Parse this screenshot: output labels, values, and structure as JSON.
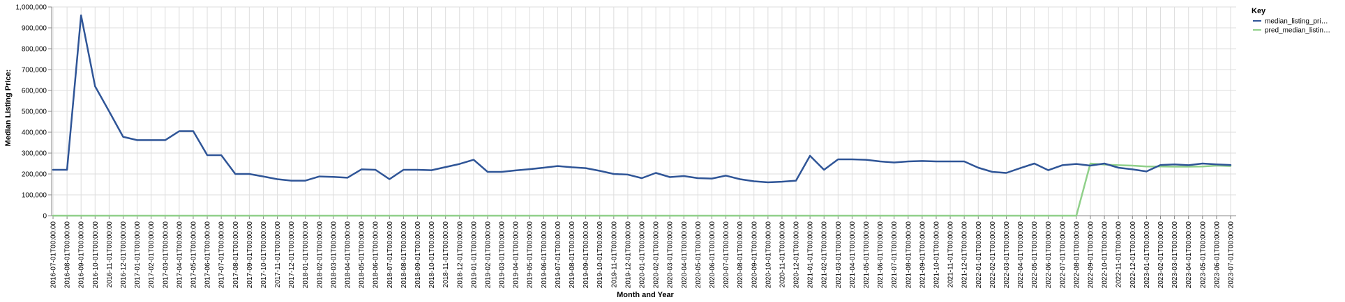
{
  "chart_data": {
    "type": "line",
    "xlabel": "Month and Year",
    "ylabel": "Median Listing Price:",
    "ylim": [
      0,
      1000000
    ],
    "yticks": [
      "0",
      "100,000",
      "200,000",
      "300,000",
      "400,000",
      "500,000",
      "600,000",
      "700,000",
      "800,000",
      "900,000",
      "1,000,000"
    ],
    "grid": true,
    "legend": {
      "title": "Key",
      "placement": "top-right"
    },
    "x": [
      "2016-07-01T00:00:00",
      "2016-08-01T00:00:00",
      "2016-09-01T00:00:00",
      "2016-10-01T00:00:00",
      "2016-11-01T00:00:00",
      "2016-12-01T00:00:00",
      "2017-01-01T00:00:00",
      "2017-02-01T00:00:00",
      "2017-03-01T00:00:00",
      "2017-04-01T00:00:00",
      "2017-05-01T00:00:00",
      "2017-06-01T00:00:00",
      "2017-07-01T00:00:00",
      "2017-08-01T00:00:00",
      "2017-09-01T00:00:00",
      "2017-10-01T00:00:00",
      "2017-11-01T00:00:00",
      "2017-12-01T00:00:00",
      "2018-01-01T00:00:00",
      "2018-02-01T00:00:00",
      "2018-03-01T00:00:00",
      "2018-04-01T00:00:00",
      "2018-05-01T00:00:00",
      "2018-06-01T00:00:00",
      "2018-07-01T00:00:00",
      "2018-08-01T00:00:00",
      "2018-09-01T00:00:00",
      "2018-10-01T00:00:00",
      "2018-11-01T00:00:00",
      "2018-12-01T00:00:00",
      "2019-01-01T00:00:00",
      "2019-02-01T00:00:00",
      "2019-03-01T00:00:00",
      "2019-04-01T00:00:00",
      "2019-05-01T00:00:00",
      "2019-06-01T00:00:00",
      "2019-07-01T00:00:00",
      "2019-08-01T00:00:00",
      "2019-09-01T00:00:00",
      "2019-10-01T00:00:00",
      "2019-11-01T00:00:00",
      "2019-12-01T00:00:00",
      "2020-01-01T00:00:00",
      "2020-02-01T00:00:00",
      "2020-03-01T00:00:00",
      "2020-04-01T00:00:00",
      "2020-05-01T00:00:00",
      "2020-06-01T00:00:00",
      "2020-07-01T00:00:00",
      "2020-08-01T00:00:00",
      "2020-09-01T00:00:00",
      "2020-10-01T00:00:00",
      "2020-11-01T00:00:00",
      "2020-12-01T00:00:00",
      "2021-01-01T00:00:00",
      "2021-02-01T00:00:00",
      "2021-03-01T00:00:00",
      "2021-04-01T00:00:00",
      "2021-05-01T00:00:00",
      "2021-06-01T00:00:00",
      "2021-07-01T00:00:00",
      "2021-08-01T00:00:00",
      "2021-09-01T00:00:00",
      "2021-10-01T00:00:00",
      "2021-11-01T00:00:00",
      "2021-12-01T00:00:00",
      "2022-01-01T00:00:00",
      "2022-02-01T00:00:00",
      "2022-03-01T00:00:00",
      "2022-04-01T00:00:00",
      "2022-05-01T00:00:00",
      "2022-06-01T00:00:00",
      "2022-07-01T00:00:00",
      "2022-08-01T00:00:00",
      "2022-09-01T00:00:00",
      "2022-10-01T00:00:00",
      "2022-11-01T00:00:00",
      "2022-12-01T00:00:00",
      "2023-01-01T00:00:00",
      "2023-02-01T00:00:00",
      "2023-03-01T00:00:00",
      "2023-04-01T00:00:00",
      "2023-05-01T00:00:00",
      "2023-06-01T00:00:00",
      "2023-07-01T00:00:00"
    ],
    "series": [
      {
        "name": "median_listing_pri…",
        "color": "#2f5597",
        "values": [
          220000,
          220000,
          960000,
          620000,
          500000,
          378000,
          362000,
          362000,
          362000,
          405000,
          405000,
          290000,
          290000,
          200000,
          200000,
          188000,
          175000,
          168000,
          168000,
          188000,
          186000,
          182000,
          222000,
          220000,
          175000,
          220000,
          220000,
          218000,
          233000,
          248000,
          268000,
          210000,
          210000,
          217000,
          223000,
          230000,
          238000,
          232000,
          228000,
          215000,
          200000,
          197000,
          180000,
          205000,
          185000,
          190000,
          180000,
          178000,
          192000,
          175000,
          165000,
          160000,
          163000,
          168000,
          287000,
          220000,
          270000,
          270000,
          268000,
          260000,
          255000,
          260000,
          262000,
          260000,
          260000,
          260000,
          230000,
          210000,
          205000,
          228000,
          250000,
          218000,
          242000,
          248000,
          240000,
          250000,
          230000,
          222000,
          212000,
          243000,
          246000,
          242000,
          250000,
          246000,
          243000
        ]
      },
      {
        "name": "pred_median_listin…",
        "color": "#90d08a",
        "values": [
          0,
          0,
          0,
          0,
          0,
          0,
          0,
          0,
          0,
          0,
          0,
          0,
          0,
          0,
          0,
          0,
          0,
          0,
          0,
          0,
          0,
          0,
          0,
          0,
          0,
          0,
          0,
          0,
          0,
          0,
          0,
          0,
          0,
          0,
          0,
          0,
          0,
          0,
          0,
          0,
          0,
          0,
          0,
          0,
          0,
          0,
          0,
          0,
          0,
          0,
          0,
          0,
          0,
          0,
          0,
          0,
          0,
          0,
          0,
          0,
          0,
          0,
          0,
          0,
          0,
          0,
          0,
          0,
          0,
          0,
          0,
          0,
          0,
          0,
          250000,
          245000,
          242000,
          240000,
          236000,
          236000,
          235000,
          235000,
          236000,
          240000,
          238000
        ]
      }
    ]
  }
}
